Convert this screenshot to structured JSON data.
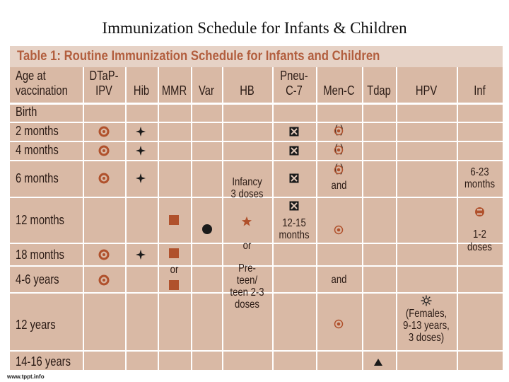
{
  "slide": {
    "title": "Immunization Schedule for Infants & Children",
    "footer": "www.tppt.info"
  },
  "table": {
    "caption": "Table 1: Routine Immunization Schedule for Infants and Children",
    "headers": {
      "age": [
        "Age at",
        "vaccination"
      ],
      "dtap": [
        "DTaP-",
        "IPV"
      ],
      "hib": "Hib",
      "mmr": "MMR",
      "var": "Var",
      "hb": "HB",
      "pneu": [
        "Pneu-",
        "C-7"
      ],
      "men": "Men-C",
      "tdap": "Tdap",
      "hpv": "HPV",
      "inf": "Inf"
    },
    "rows": [
      "Birth",
      "2 months",
      "4 months",
      "6 months",
      "12 months",
      "18 months",
      "4-6 years",
      "12 years",
      "14-16 years"
    ],
    "notes": {
      "hb_infancy": [
        "Infancy",
        "3 doses"
      ],
      "hb_or": "or",
      "hb_preteen": [
        "Pre-",
        "teen/",
        "teen 2-3",
        "doses"
      ],
      "mmr_or": "or",
      "pneu_12_15": [
        "12-15",
        "months"
      ],
      "men_paren": "(   )",
      "men_and_1": "and",
      "men_and_2": "and",
      "hpv_females": [
        "(Females,",
        "9-13 years,",
        "3 doses)"
      ],
      "inf_623": [
        "6-23",
        "months"
      ],
      "inf_12": [
        "1-2",
        "doses"
      ]
    }
  },
  "colors": {
    "panel": "#e6d2c6",
    "cell": "#d9b9a5",
    "caption": "#b25e3e",
    "symbol_orange": "#b0512c",
    "symbol_dark": "#1a1a1a"
  }
}
